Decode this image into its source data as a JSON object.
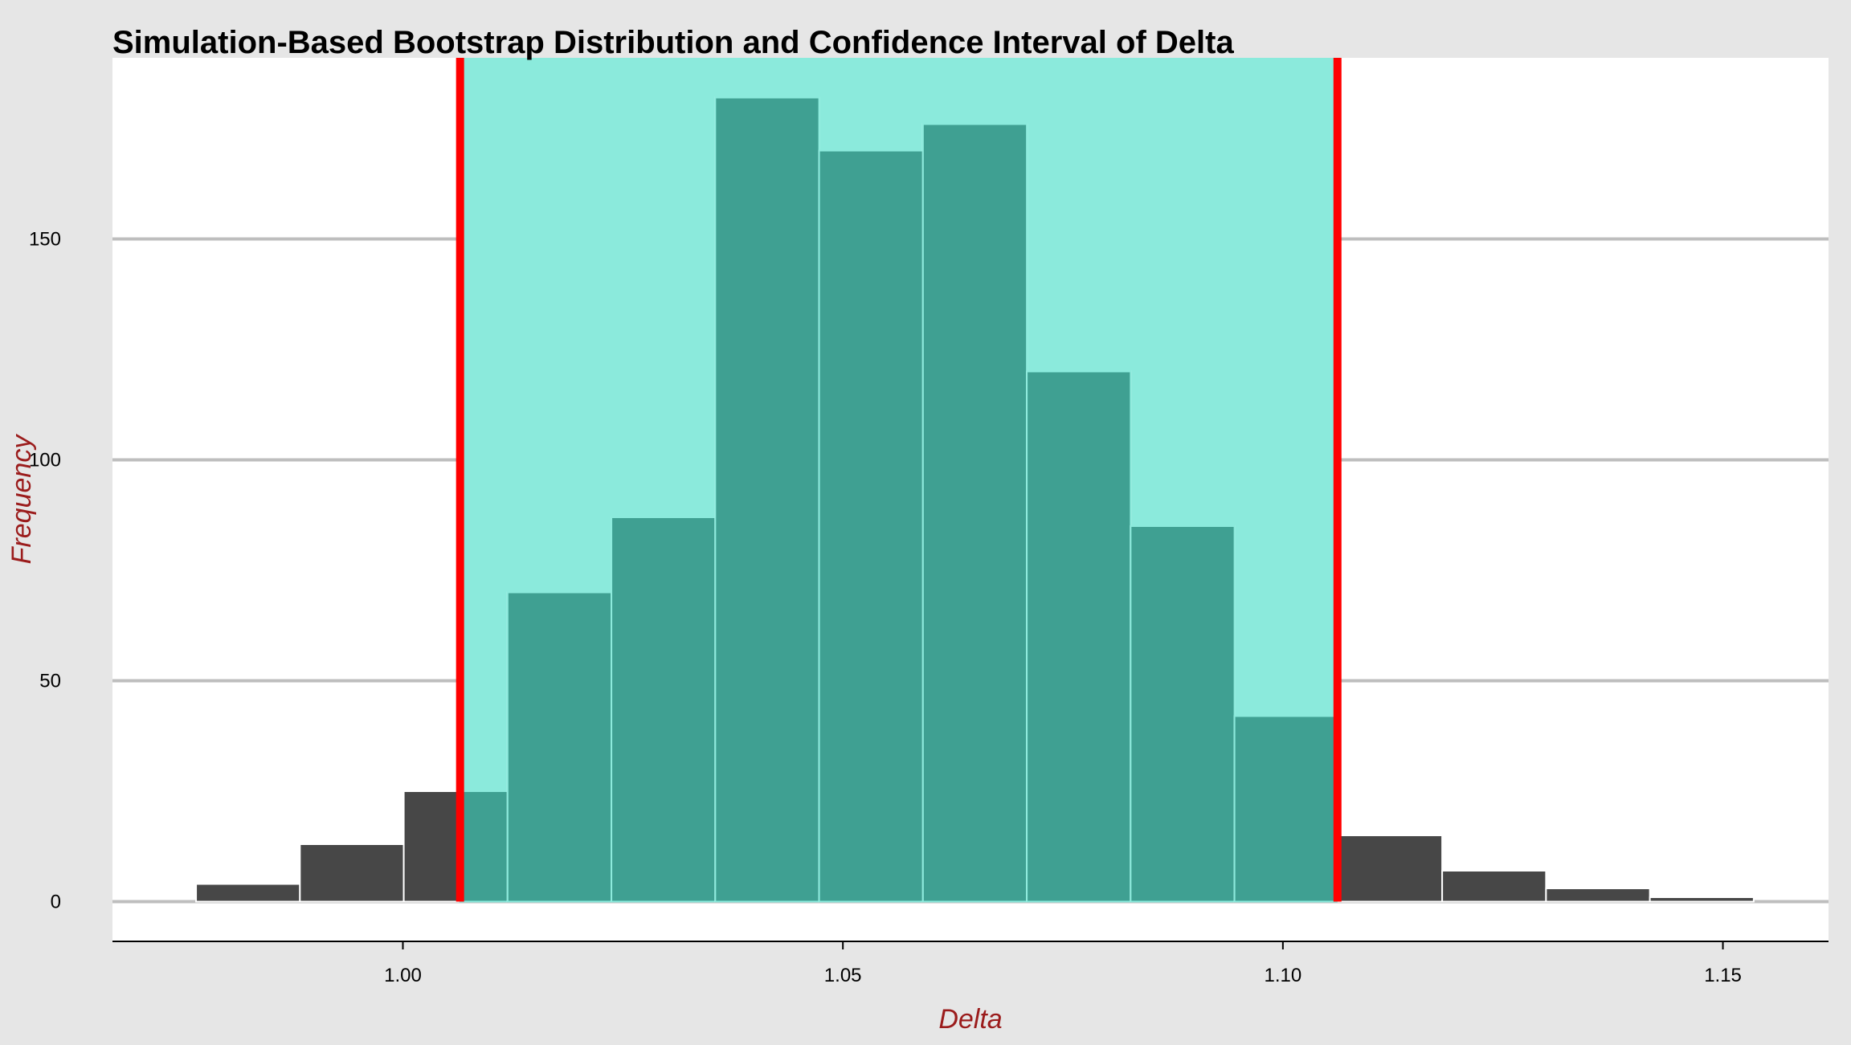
{
  "chart_data": {
    "type": "bar",
    "title": "Simulation-Based Bootstrap Distribution and Confidence Interval of Delta",
    "xlabel": "Delta",
    "ylabel": "Frequency",
    "x_ticks": [
      "1.00",
      "1.05",
      "1.10",
      "1.15"
    ],
    "y_ticks": [
      "0",
      "50",
      "100",
      "150"
    ],
    "xlim": [
      0.967,
      1.162
    ],
    "ylim": [
      -9,
      191
    ],
    "grid": "horizontal",
    "bin_width": 0.0118,
    "bins": [
      {
        "x0": 0.9765,
        "x1": 0.9883,
        "count": 4
      },
      {
        "x0": 0.9883,
        "x1": 1.0001,
        "count": 13
      },
      {
        "x0": 1.0001,
        "x1": 1.0119,
        "count": 25
      },
      {
        "x0": 1.0119,
        "x1": 1.0237,
        "count": 70
      },
      {
        "x0": 1.0237,
        "x1": 1.0355,
        "count": 87
      },
      {
        "x0": 1.0355,
        "x1": 1.0473,
        "count": 182
      },
      {
        "x0": 1.0473,
        "x1": 1.0591,
        "count": 170
      },
      {
        "x0": 1.0591,
        "x1": 1.0709,
        "count": 176
      },
      {
        "x0": 1.0709,
        "x1": 1.0827,
        "count": 120
      },
      {
        "x0": 1.0827,
        "x1": 1.0945,
        "count": 85
      },
      {
        "x0": 1.0945,
        "x1": 1.1063,
        "count": 42
      },
      {
        "x0": 1.1063,
        "x1": 1.1181,
        "count": 15
      },
      {
        "x0": 1.1181,
        "x1": 1.1299,
        "count": 7
      },
      {
        "x0": 1.1299,
        "x1": 1.1417,
        "count": 3
      },
      {
        "x0": 1.1417,
        "x1": 1.1535,
        "count": 1
      }
    ],
    "confidence_interval": {
      "lower": 1.0065,
      "upper": 1.1062
    },
    "colors": {
      "bar_outside": "#474747",
      "bar_inside": "#3fa092",
      "ci_band": "#8beadc",
      "ci_line": "#ff0000",
      "grid": "#bebebe",
      "axis": "#000000",
      "panel": "#ffffff",
      "background": "#e6e6e6",
      "bar_edge_inside": "#8beadc",
      "bar_edge_outside": "#ffffff"
    }
  }
}
